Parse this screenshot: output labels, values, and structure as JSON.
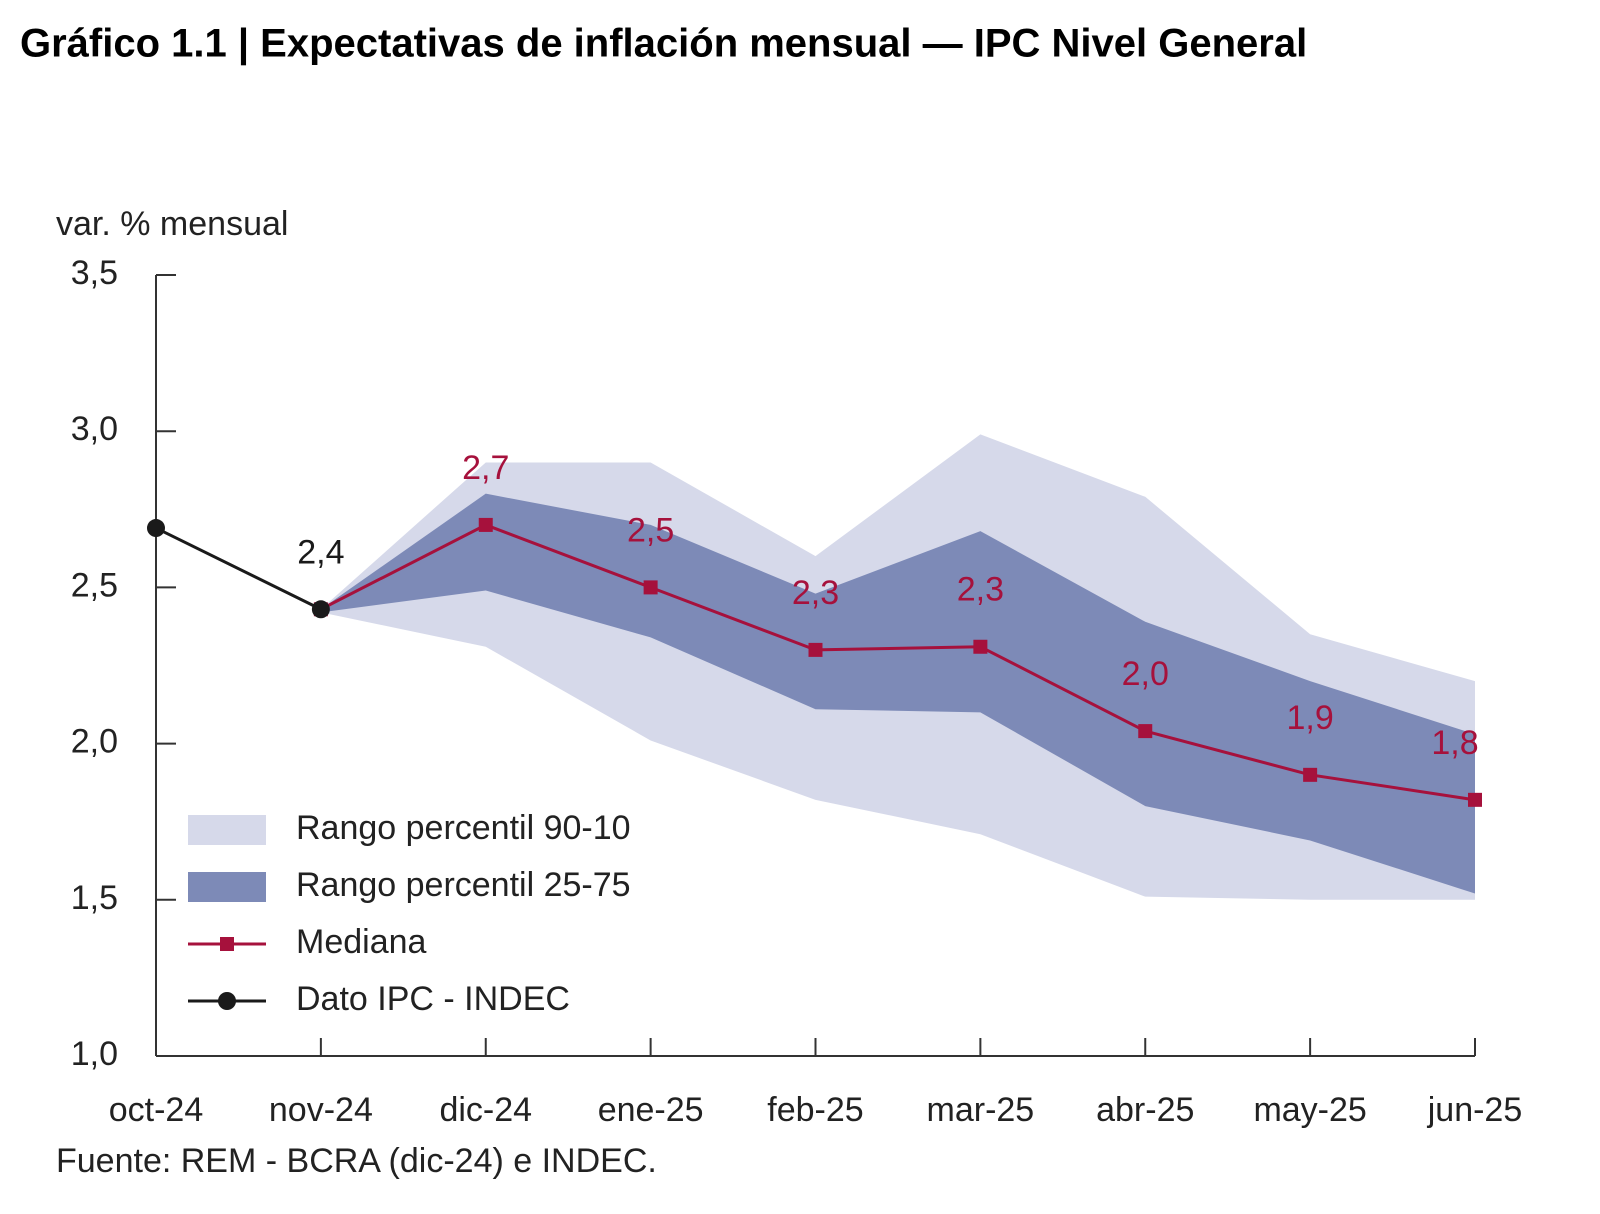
{
  "chart_data": {
    "type": "line",
    "title": "Gráfico 1.1 | Expectativas de inflación mensual — IPC Nivel General",
    "y_label": "var. % mensual",
    "source": "Fuente: REM - BCRA (dic-24) e INDEC.",
    "categories": [
      "oct-24",
      "nov-24",
      "dic-24",
      "ene-25",
      "feb-25",
      "mar-25",
      "abr-25",
      "may-25",
      "jun-25"
    ],
    "ylim": [
      1.0,
      3.5
    ],
    "yticks": [
      {
        "value": 1.0,
        "label": "1,0"
      },
      {
        "value": 1.5,
        "label": "1,5"
      },
      {
        "value": 2.0,
        "label": "2,0"
      },
      {
        "value": 2.5,
        "label": "2,5"
      },
      {
        "value": 3.0,
        "label": "3,0"
      },
      {
        "value": 3.5,
        "label": "3,5"
      }
    ],
    "legend": "lower left",
    "series": [
      {
        "name": "Rango percentil 90-10",
        "kind": "band",
        "color": "#d6d9ea",
        "low": [
          null,
          2.42,
          2.31,
          2.01,
          1.82,
          1.71,
          1.51,
          1.5,
          1.5
        ],
        "high": [
          null,
          2.43,
          2.9,
          2.9,
          2.6,
          2.99,
          2.79,
          2.35,
          2.2
        ]
      },
      {
        "name": "Rango percentil 25-75",
        "kind": "band",
        "color": "#7d8ab7",
        "low": [
          null,
          2.42,
          2.49,
          2.34,
          2.11,
          2.1,
          1.8,
          1.69,
          1.52
        ],
        "high": [
          null,
          2.43,
          2.8,
          2.7,
          2.48,
          2.68,
          2.39,
          2.2,
          2.03
        ]
      },
      {
        "name": "Mediana",
        "kind": "line",
        "marker": "square",
        "color": "#a6113c",
        "values": [
          null,
          2.43,
          2.7,
          2.5,
          2.3,
          2.31,
          2.04,
          1.9,
          1.82
        ],
        "value_labels": [
          null,
          null,
          "2,7",
          "2,5",
          "2,3",
          "2,3",
          "2,0",
          "1,9",
          "1,8"
        ]
      },
      {
        "name": "Dato IPC - INDEC",
        "kind": "line",
        "marker": "circle",
        "color": "#1a1a1a",
        "values": [
          2.69,
          2.43,
          null,
          null,
          null,
          null,
          null,
          null,
          null
        ],
        "value_labels": [
          null,
          "2,4",
          null,
          null,
          null,
          null,
          null,
          null,
          null
        ]
      }
    ]
  }
}
